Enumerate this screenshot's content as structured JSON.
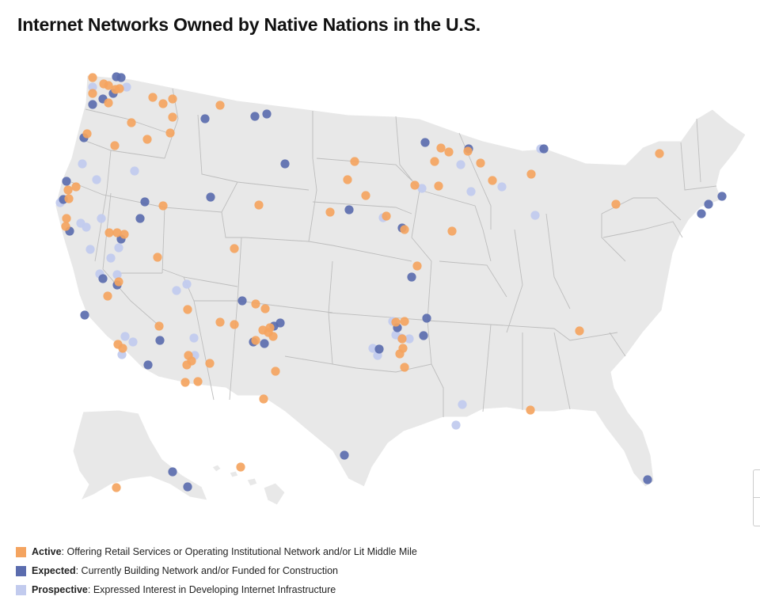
{
  "title": "Internet Networks Owned by Native Nations in the U.S.",
  "colors": {
    "land": "#e8e8e8",
    "borders": "#bdbdbd",
    "active": "#f4a460",
    "expected": "#5b6cae",
    "prospective": "#c2cbee"
  },
  "legend": [
    {
      "key": "active",
      "name": "Active",
      "desc": ": Offering Retail Services or Operating Institutional Network and/or Lit Middle Mile"
    },
    {
      "key": "expected",
      "name": "Expected",
      "desc": ": Currently Building Network and/or Funded for Construction"
    },
    {
      "key": "prospective",
      "name": "Prospective",
      "desc": ": Expressed Interest in Developing Internet Infrastructure"
    }
  ],
  "map_markers": {
    "active": [
      [
        117,
        98
      ],
      [
        131,
        106
      ],
      [
        137,
        108
      ],
      [
        146,
        113
      ],
      [
        151,
        112
      ],
      [
        117,
        118
      ],
      [
        137,
        130
      ],
      [
        193,
        123
      ],
      [
        206,
        131
      ],
      [
        218,
        125
      ],
      [
        218,
        148
      ],
      [
        166,
        155
      ],
      [
        110,
        169
      ],
      [
        145,
        184
      ],
      [
        186,
        176
      ],
      [
        215,
        168
      ],
      [
        278,
        133
      ],
      [
        96,
        236
      ],
      [
        86,
        240
      ],
      [
        87,
        251
      ],
      [
        84,
        276
      ],
      [
        83,
        286
      ],
      [
        138,
        294
      ],
      [
        148,
        294
      ],
      [
        157,
        296
      ],
      [
        206,
        260
      ],
      [
        199,
        325
      ],
      [
        296,
        314
      ],
      [
        327,
        259
      ],
      [
        150,
        356
      ],
      [
        136,
        374
      ],
      [
        237,
        391
      ],
      [
        201,
        412
      ],
      [
        149,
        435
      ],
      [
        155,
        440
      ],
      [
        238,
        449
      ],
      [
        242,
        456
      ],
      [
        236,
        461
      ],
      [
        265,
        459
      ],
      [
        234,
        483
      ],
      [
        250,
        482
      ],
      [
        278,
        407
      ],
      [
        296,
        410
      ],
      [
        323,
        384
      ],
      [
        335,
        390
      ],
      [
        332,
        417
      ],
      [
        339,
        420
      ],
      [
        341,
        414
      ],
      [
        345,
        425
      ],
      [
        323,
        430
      ],
      [
        348,
        469
      ],
      [
        333,
        504
      ],
      [
        417,
        268
      ],
      [
        439,
        227
      ],
      [
        448,
        204
      ],
      [
        462,
        247
      ],
      [
        488,
        273
      ],
      [
        511,
        290
      ],
      [
        524,
        234
      ],
      [
        549,
        204
      ],
      [
        557,
        187
      ],
      [
        554,
        235
      ],
      [
        567,
        192
      ],
      [
        591,
        191
      ],
      [
        607,
        206
      ],
      [
        622,
        228
      ],
      [
        571,
        292
      ],
      [
        527,
        336
      ],
      [
        500,
        407
      ],
      [
        511,
        406
      ],
      [
        509,
        440
      ],
      [
        505,
        447
      ],
      [
        511,
        464
      ],
      [
        508,
        428
      ],
      [
        671,
        220
      ],
      [
        778,
        258
      ],
      [
        833,
        194
      ],
      [
        732,
        418
      ],
      [
        670,
        518
      ],
      [
        304,
        590
      ],
      [
        147,
        616
      ]
    ],
    "expected": [
      [
        147,
        97
      ],
      [
        153,
        98
      ],
      [
        143,
        118
      ],
      [
        130,
        125
      ],
      [
        117,
        132
      ],
      [
        259,
        150
      ],
      [
        322,
        147
      ],
      [
        337,
        144
      ],
      [
        106,
        174
      ],
      [
        360,
        207
      ],
      [
        266,
        249
      ],
      [
        183,
        255
      ],
      [
        177,
        276
      ],
      [
        84,
        229
      ],
      [
        80,
        252
      ],
      [
        88,
        292
      ],
      [
        153,
        302
      ],
      [
        130,
        352
      ],
      [
        148,
        360
      ],
      [
        107,
        398
      ],
      [
        202,
        430
      ],
      [
        187,
        461
      ],
      [
        306,
        380
      ],
      [
        320,
        432
      ],
      [
        334,
        434
      ],
      [
        346,
        412
      ],
      [
        354,
        408
      ],
      [
        441,
        265
      ],
      [
        508,
        288
      ],
      [
        520,
        350
      ],
      [
        537,
        180
      ],
      [
        592,
        188
      ],
      [
        687,
        188
      ],
      [
        539,
        402
      ],
      [
        535,
        424
      ],
      [
        502,
        414
      ],
      [
        479,
        441
      ],
      [
        912,
        248
      ],
      [
        895,
        258
      ],
      [
        886,
        270
      ],
      [
        435,
        575
      ],
      [
        218,
        596
      ],
      [
        237,
        615
      ],
      [
        818,
        606
      ]
    ],
    "prospective": [
      [
        117,
        110
      ],
      [
        160,
        110
      ],
      [
        104,
        207
      ],
      [
        122,
        227
      ],
      [
        170,
        216
      ],
      [
        76,
        256
      ],
      [
        102,
        282
      ],
      [
        109,
        287
      ],
      [
        128,
        276
      ],
      [
        114,
        315
      ],
      [
        150,
        313
      ],
      [
        140,
        326
      ],
      [
        126,
        346
      ],
      [
        148,
        347
      ],
      [
        236,
        359
      ],
      [
        223,
        367
      ],
      [
        582,
        208
      ],
      [
        595,
        242
      ],
      [
        634,
        236
      ],
      [
        533,
        238
      ],
      [
        484,
        275
      ],
      [
        683,
        188
      ],
      [
        676,
        272
      ],
      [
        168,
        432
      ],
      [
        158,
        425
      ],
      [
        154,
        448
      ],
      [
        245,
        427
      ],
      [
        246,
        449
      ],
      [
        496,
        406
      ],
      [
        500,
        423
      ],
      [
        507,
        427
      ],
      [
        517,
        428
      ],
      [
        471,
        440
      ],
      [
        477,
        449
      ],
      [
        584,
        511
      ],
      [
        576,
        537
      ]
    ]
  }
}
